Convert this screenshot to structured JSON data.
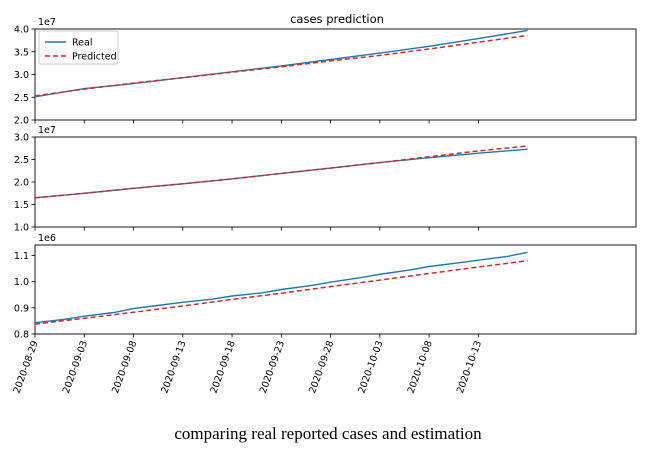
{
  "caption": "comparing real reported cases and estimation",
  "colors": {
    "real": "#1f77b4",
    "predicted": "#d62728"
  },
  "chart_data": [
    {
      "type": "line",
      "title": "cases prediction",
      "offset_label": "1e7",
      "ylim": [
        2.0,
        4.0
      ],
      "yticks": [
        2.0,
        2.5,
        3.0,
        3.5,
        4.0
      ],
      "ytick_labels": [
        "2.0",
        "2.5",
        "3.0",
        "3.5",
        "4.0"
      ],
      "legend": "top-left",
      "series": [
        {
          "name": "Real",
          "style": "solid",
          "x": [
            "2020-08-29",
            "2020-09-03",
            "2020-09-08",
            "2020-09-13",
            "2020-09-18",
            "2020-09-23",
            "2020-09-28",
            "2020-10-03",
            "2020-10-08",
            "2020-10-13",
            "2020-10-18"
          ],
          "values": [
            2.51,
            2.69,
            2.8,
            2.93,
            3.06,
            3.19,
            3.33,
            3.47,
            3.62,
            3.79,
            3.97
          ]
        },
        {
          "name": "Predicted",
          "style": "dashed",
          "x": [
            "2020-08-29",
            "2020-09-03",
            "2020-09-08",
            "2020-09-13",
            "2020-09-18",
            "2020-09-23",
            "2020-09-28",
            "2020-10-03",
            "2020-10-08",
            "2020-10-13",
            "2020-10-18"
          ],
          "values": [
            2.53,
            2.68,
            2.81,
            2.93,
            3.05,
            3.17,
            3.3,
            3.42,
            3.56,
            3.71,
            3.86
          ]
        }
      ]
    },
    {
      "type": "line",
      "title": "",
      "offset_label": "1e7",
      "ylim": [
        1.0,
        3.0
      ],
      "yticks": [
        1.0,
        1.5,
        2.0,
        2.5,
        3.0
      ],
      "ytick_labels": [
        "1.0",
        "1.5",
        "2.0",
        "2.5",
        "3.0"
      ],
      "series": [
        {
          "name": "Real",
          "style": "solid",
          "x": [
            "2020-08-29",
            "2020-09-03",
            "2020-09-08",
            "2020-09-13",
            "2020-09-18",
            "2020-09-23",
            "2020-09-28",
            "2020-10-03",
            "2020-10-08",
            "2020-10-13",
            "2020-10-18"
          ],
          "values": [
            1.65,
            1.75,
            1.86,
            1.96,
            2.07,
            2.19,
            2.31,
            2.43,
            2.54,
            2.64,
            2.73
          ]
        },
        {
          "name": "Predicted",
          "style": "dashed",
          "x": [
            "2020-08-29",
            "2020-09-03",
            "2020-09-08",
            "2020-09-13",
            "2020-09-18",
            "2020-09-23",
            "2020-09-28",
            "2020-10-03",
            "2020-10-08",
            "2020-10-13",
            "2020-10-18"
          ],
          "values": [
            1.65,
            1.75,
            1.86,
            1.96,
            2.07,
            2.19,
            2.31,
            2.43,
            2.56,
            2.69,
            2.8
          ]
        }
      ]
    },
    {
      "type": "line",
      "title": "",
      "offset_label": "1e6",
      "ylim": [
        0.8,
        1.14
      ],
      "yticks": [
        0.8,
        0.9,
        1.0,
        1.1
      ],
      "ytick_labels": [
        "0.8",
        "0.9",
        "1.0",
        "1.1"
      ],
      "xticks": [
        "2020-08-29",
        "2020-09-03",
        "2020-09-08",
        "2020-09-13",
        "2020-09-18",
        "2020-09-23",
        "2020-09-28",
        "2020-10-03",
        "2020-10-08",
        "2020-10-13"
      ],
      "xlim": [
        "2020-08-29",
        "2020-10-29"
      ],
      "series": [
        {
          "name": "Real",
          "style": "solid",
          "x": [
            "2020-08-29",
            "2020-09-01",
            "2020-09-03",
            "2020-09-06",
            "2020-09-08",
            "2020-09-10",
            "2020-09-13",
            "2020-09-16",
            "2020-09-18",
            "2020-09-21",
            "2020-09-23",
            "2020-09-26",
            "2020-09-28",
            "2020-10-01",
            "2020-10-03",
            "2020-10-06",
            "2020-10-08",
            "2020-10-11",
            "2020-10-13",
            "2020-10-16",
            "2020-10-18"
          ],
          "values": [
            0.843,
            0.856,
            0.868,
            0.882,
            0.897,
            0.907,
            0.921,
            0.933,
            0.945,
            0.957,
            0.97,
            0.985,
            0.998,
            1.015,
            1.028,
            1.044,
            1.058,
            1.072,
            1.082,
            1.097,
            1.112
          ]
        },
        {
          "name": "Predicted",
          "style": "dashed",
          "x": [
            "2020-08-29",
            "2020-09-03",
            "2020-09-08",
            "2020-09-13",
            "2020-09-18",
            "2020-09-23",
            "2020-09-28",
            "2020-10-03",
            "2020-10-08",
            "2020-10-13",
            "2020-10-18"
          ],
          "values": [
            0.838,
            0.86,
            0.883,
            0.907,
            0.932,
            0.956,
            0.981,
            1.006,
            1.031,
            1.056,
            1.08
          ]
        }
      ]
    }
  ]
}
